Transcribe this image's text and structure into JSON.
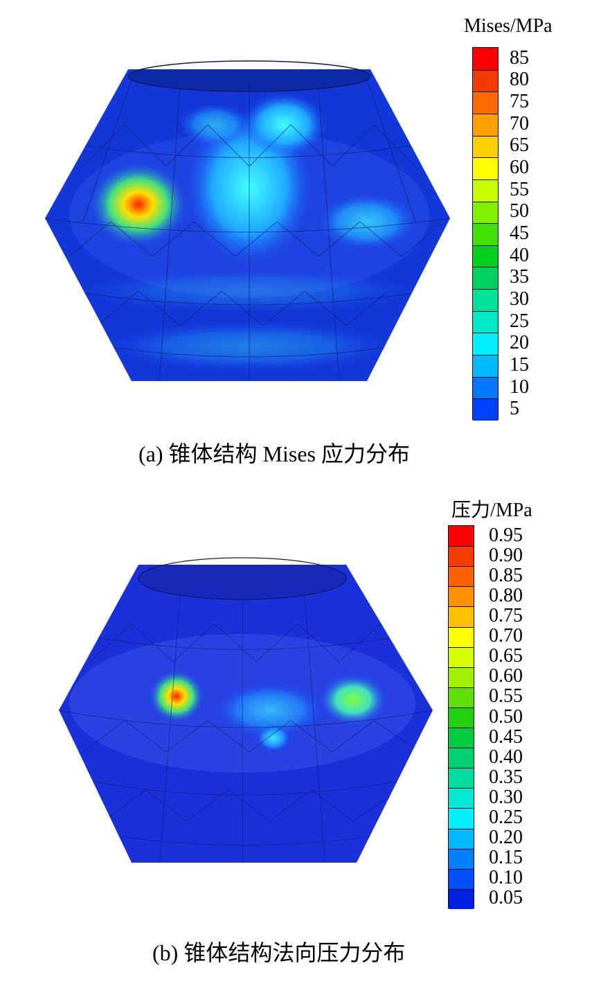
{
  "panels": [
    {
      "caption": "(a)  锥体结构 Mises  应力分布",
      "legend": {
        "title": "Mises/MPa",
        "ticks": [
          "85",
          "80",
          "75",
          "70",
          "65",
          "60",
          "55",
          "50",
          "45",
          "40",
          "35",
          "30",
          "25",
          "20",
          "15",
          "10",
          "5"
        ],
        "colors": [
          "#ff0000",
          "#f33a00",
          "#ff6a00",
          "#ffa000",
          "#ffd000",
          "#ffff00",
          "#c8ff00",
          "#80ef00",
          "#40e000",
          "#00d020",
          "#00d060",
          "#00e09a",
          "#00e8c8",
          "#00f0ff",
          "#00b8ff",
          "#0078ff",
          "#0040ff"
        ]
      }
    },
    {
      "caption": "(b)  锥体结构法向压力分布",
      "legend": {
        "title": "压力/MPa",
        "ticks": [
          "0.95",
          "0.90",
          "0.85",
          "0.80",
          "0.75",
          "0.70",
          "0.65",
          "0.60",
          "0.55",
          "0.50",
          "0.45",
          "0.40",
          "0.35",
          "0.30",
          "0.25",
          "0.20",
          "0.15",
          "0.10",
          "0.05"
        ],
        "colors": [
          "#ff0000",
          "#f53a00",
          "#ff6000",
          "#ff9000",
          "#ffc000",
          "#ffff00",
          "#d8ff00",
          "#a0f000",
          "#60e000",
          "#20d010",
          "#00cc40",
          "#00d070",
          "#00dca0",
          "#00e8d0",
          "#00f0ff",
          "#00b8ff",
          "#0080ff",
          "#0050ff",
          "#0020e0"
        ]
      }
    }
  ]
}
